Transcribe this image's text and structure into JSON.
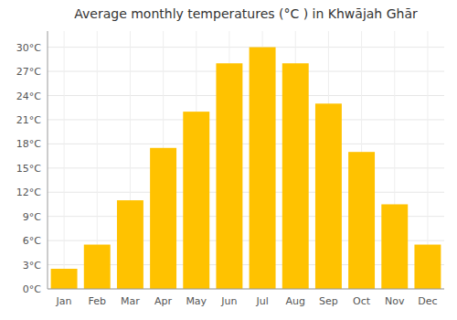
{
  "chart_data": {
    "type": "bar",
    "title": "Average monthly temperatures (°C ) in Khwājah Ghār",
    "categories": [
      "Jan",
      "Feb",
      "Mar",
      "Apr",
      "May",
      "Jun",
      "Jul",
      "Aug",
      "Sep",
      "Oct",
      "Nov",
      "Dec"
    ],
    "values": [
      2.5,
      5.5,
      11.0,
      17.5,
      22.0,
      28.0,
      30.0,
      28.0,
      23.0,
      17.0,
      10.5,
      5.5
    ],
    "color": "#FFC200",
    "ylim": [
      0,
      32
    ],
    "yticks": [
      {
        "value": 0,
        "label": "0°C"
      },
      {
        "value": 3,
        "label": "3°C"
      },
      {
        "value": 6,
        "label": "6°C"
      },
      {
        "value": 9,
        "label": "9°C"
      },
      {
        "value": 12,
        "label": "12°C"
      },
      {
        "value": 15,
        "label": "15°C"
      },
      {
        "value": 18,
        "label": "18°C"
      },
      {
        "value": 21,
        "label": "21°C"
      },
      {
        "value": 24,
        "label": "24°C"
      },
      {
        "value": 27,
        "label": "27°C"
      },
      {
        "value": 30,
        "label": "30°C"
      }
    ],
    "grid": true
  }
}
